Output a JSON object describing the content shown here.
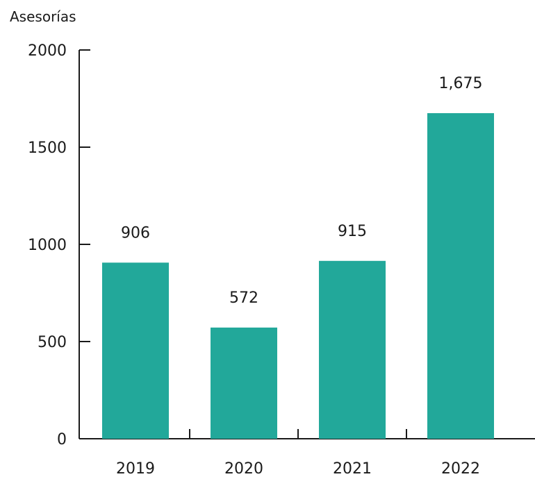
{
  "chart_data": {
    "type": "bar",
    "title": "",
    "ylabel": "Asesorías",
    "xlabel": "",
    "categories": [
      "2019",
      "2020",
      "2021",
      "2022"
    ],
    "values": [
      906,
      572,
      915,
      1675
    ],
    "data_labels": [
      "906",
      "572",
      "915",
      "1,675"
    ],
    "yticks": [
      0,
      500,
      1000,
      1500,
      2000
    ],
    "ytick_labels": [
      "0",
      "500",
      "1000",
      "1500",
      "2000"
    ],
    "ylim": [
      0,
      2000
    ],
    "grid": false,
    "legend": "none",
    "colors": {
      "bar": "#22a89a",
      "axis": "#1a1a1a",
      "text": "#1a1a1a"
    }
  }
}
